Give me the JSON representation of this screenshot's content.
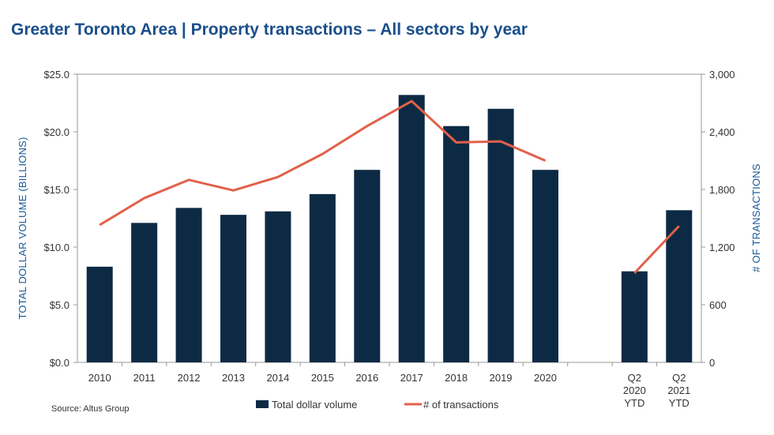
{
  "title": "Greater Toronto Area | Property transactions – All sectors by year",
  "source": "Source:  Altus Group",
  "colors": {
    "bar": "#0d2a45",
    "line": "#e0614a",
    "title": "#1a4f8a",
    "axis_label": "#1a5a96"
  },
  "chart_data": {
    "type": "bar",
    "categories": [
      [
        "2010"
      ],
      [
        "2011"
      ],
      [
        "2012"
      ],
      [
        "2013"
      ],
      [
        "2014"
      ],
      [
        "2015"
      ],
      [
        "2016"
      ],
      [
        "2017"
      ],
      [
        "2018"
      ],
      [
        "2019"
      ],
      [
        "2020"
      ],
      [],
      [
        "Q2",
        "2020",
        "YTD"
      ],
      [
        "Q2",
        "2021",
        "YTD"
      ]
    ],
    "series": [
      {
        "name": "Total dollar volume",
        "type": "bar",
        "axis": "left",
        "values": [
          8.3,
          12.1,
          13.4,
          12.8,
          13.1,
          14.6,
          16.7,
          23.2,
          20.5,
          22.0,
          16.7,
          null,
          7.9,
          13.2
        ]
      },
      {
        "name": "# of transactions",
        "type": "line",
        "axis": "right",
        "values": [
          1430,
          1710,
          1900,
          1790,
          1930,
          2170,
          2460,
          2720,
          2290,
          2300,
          2100,
          null,
          930,
          1420
        ]
      }
    ],
    "ylabel_left": "TOTAL DOLLAR VOLUME (BILLIONS)",
    "ylabel_right": "# OF TRANSACTIONS",
    "ylim_left": [
      0,
      25
    ],
    "ylim_right": [
      0,
      3000
    ],
    "yticks_left": [
      "$0.0",
      "$5.0",
      "$10.0",
      "$15.0",
      "$20.0",
      "$25.0"
    ],
    "yticks_right": [
      "0",
      "600",
      "1,200",
      "1,800",
      "2,400",
      "3,000"
    ],
    "legend_position": "bottom",
    "grid": false
  }
}
